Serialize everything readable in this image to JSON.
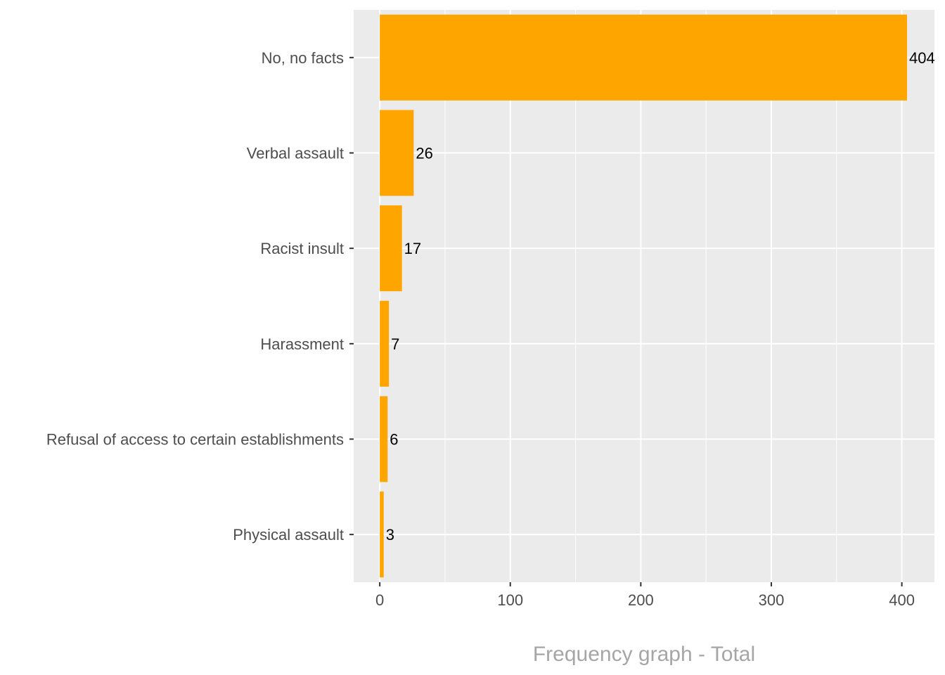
{
  "chart_data": {
    "type": "bar",
    "orientation": "horizontal",
    "categories": [
      "No, no facts",
      "Verbal assault",
      "Racist insult",
      "Harassment",
      "Refusal of access to certain establishments",
      "Physical assault"
    ],
    "values": [
      404,
      26,
      17,
      7,
      6,
      3
    ],
    "xlabel": "Frequency graph - Total",
    "ylabel": "",
    "xlim": [
      -20,
      425
    ],
    "x_ticks": [
      0,
      100,
      200,
      300,
      400
    ],
    "grid": true,
    "legend": "none",
    "colors": {
      "bar": "#FFA500",
      "panel": "#EBEBEB",
      "grid": "#FFFFFF",
      "text": "#4D4D4D",
      "title": "#A6A6A6"
    }
  }
}
